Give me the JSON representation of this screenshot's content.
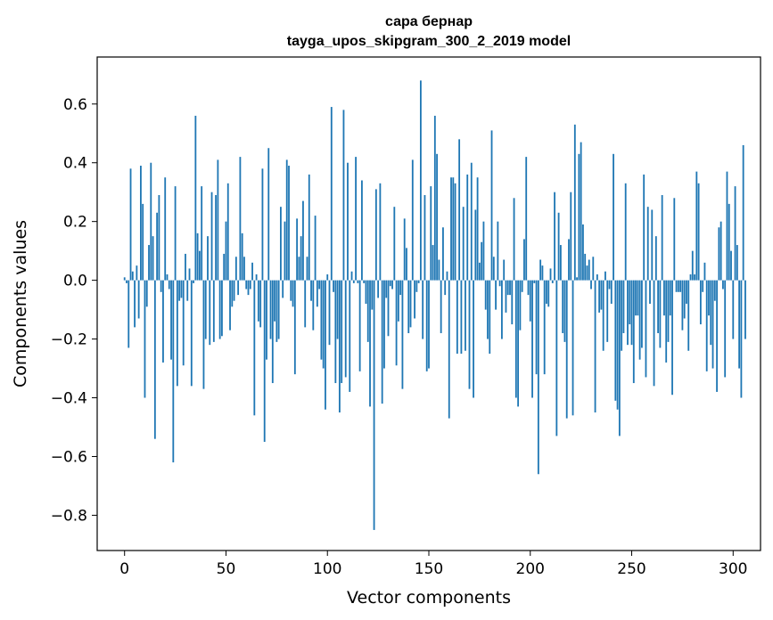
{
  "chart_data": {
    "type": "bar",
    "title": "сара бернар",
    "subtitle": "tayga_upos_skipgram_300_2_2019 model",
    "xlabel": "Vector components",
    "ylabel": "Components values",
    "xlim": [
      -13.5,
      313.5
    ],
    "ylim": [
      -0.92,
      0.76
    ],
    "xticks": [
      0,
      50,
      100,
      150,
      200,
      250,
      300
    ],
    "yticks": [
      -0.8,
      -0.6,
      -0.4,
      -0.2,
      0.0,
      0.2,
      0.4,
      0.6
    ],
    "ytick_labels": [
      "−0.8",
      "−0.6",
      "−0.4",
      "−0.2",
      "0.0",
      "0.2",
      "0.4",
      "0.6"
    ],
    "bar_color": "#1f77b4",
    "values": [
      0.01,
      -0.01,
      -0.23,
      0.38,
      0.03,
      -0.16,
      0.05,
      -0.13,
      0.39,
      0.26,
      -0.4,
      -0.09,
      0.12,
      0.4,
      0.15,
      -0.54,
      0.23,
      0.29,
      -0.04,
      -0.28,
      0.35,
      0.02,
      -0.03,
      -0.27,
      -0.62,
      0.32,
      -0.36,
      -0.07,
      -0.06,
      -0.29,
      0.09,
      -0.07,
      0.04,
      -0.36,
      -0.01,
      0.56,
      0.16,
      0.1,
      0.32,
      -0.37,
      -0.2,
      0.15,
      -0.22,
      0.3,
      -0.21,
      0.29,
      0.41,
      -0.2,
      -0.19,
      0.09,
      0.2,
      0.33,
      -0.17,
      -0.09,
      -0.07,
      0.08,
      -0.05,
      0.42,
      0.16,
      0.08,
      -0.03,
      -0.05,
      -0.03,
      0.06,
      -0.46,
      0.02,
      -0.14,
      -0.16,
      0.38,
      -0.55,
      -0.27,
      0.45,
      -0.2,
      -0.35,
      -0.14,
      -0.21,
      -0.2,
      0.25,
      -0.06,
      0.2,
      0.41,
      0.39,
      -0.07,
      -0.09,
      -0.32,
      0.21,
      0.08,
      0.15,
      0.27,
      -0.16,
      0.08,
      0.36,
      -0.07,
      -0.17,
      0.22,
      -0.09,
      -0.03,
      -0.27,
      -0.3,
      -0.44,
      0.02,
      -0.22,
      0.59,
      -0.04,
      -0.35,
      -0.2,
      -0.45,
      -0.35,
      0.58,
      -0.33,
      0.4,
      -0.38,
      0.03,
      -0.01,
      0.42,
      -0.01,
      -0.31,
      0.34,
      -0.01,
      -0.08,
      -0.21,
      -0.43,
      -0.1,
      -0.85,
      0.31,
      -0.06,
      0.33,
      -0.42,
      -0.3,
      -0.06,
      -0.19,
      -0.02,
      -0.03,
      0.25,
      -0.29,
      -0.14,
      -0.05,
      -0.37,
      0.21,
      0.11,
      -0.18,
      -0.16,
      0.41,
      -0.13,
      -0.04,
      -0.01,
      0.68,
      -0.2,
      0.29,
      -0.31,
      -0.3,
      0.32,
      0.12,
      0.56,
      0.43,
      0.07,
      -0.18,
      0.18,
      -0.05,
      0.03,
      -0.47,
      0.35,
      0.35,
      0.33,
      -0.25,
      0.48,
      -0.25,
      0.25,
      -0.24,
      0.36,
      -0.37,
      0.4,
      -0.4,
      0.24,
      0.35,
      0.06,
      0.13,
      0.2,
      -0.1,
      -0.2,
      -0.25,
      0.51,
      0.08,
      -0.1,
      0.2,
      -0.02,
      -0.2,
      0.07,
      -0.11,
      -0.05,
      -0.05,
      -0.15,
      0.28,
      -0.4,
      -0.43,
      -0.17,
      -0.04,
      0.14,
      0.42,
      -0.05,
      -0.14,
      -0.4,
      -0.01,
      -0.32,
      -0.66,
      0.07,
      0.05,
      -0.32,
      -0.08,
      -0.09,
      0.04,
      -0.01,
      0.3,
      -0.53,
      0.23,
      0.12,
      -0.18,
      -0.21,
      -0.47,
      0.14,
      0.3,
      -0.46,
      0.53,
      0.01,
      0.43,
      0.47,
      0.19,
      0.09,
      0.05,
      0.07,
      -0.03,
      0.08,
      -0.45,
      0.02,
      -0.11,
      -0.1,
      -0.24,
      0.03,
      -0.21,
      -0.03,
      -0.08,
      0.43,
      -0.41,
      -0.44,
      -0.53,
      -0.24,
      -0.18,
      0.33,
      -0.22,
      -0.15,
      -0.22,
      -0.35,
      -0.12,
      -0.12,
      -0.27,
      -0.23,
      0.36,
      -0.33,
      0.25,
      -0.08,
      0.24,
      -0.36,
      0.15,
      -0.18,
      -0.23,
      0.29,
      -0.12,
      -0.28,
      -0.21,
      -0.12,
      -0.39,
      0.28,
      -0.04,
      -0.04,
      -0.04,
      -0.17,
      -0.13,
      -0.08,
      -0.24,
      0.02,
      0.1,
      0.02,
      0.37,
      0.33,
      -0.15,
      -0.04,
      0.06,
      -0.31,
      -0.12,
      -0.22,
      -0.3,
      -0.07,
      -0.38,
      0.18,
      0.2,
      -0.03,
      -0.33,
      0.37,
      0.26,
      0.1,
      -0.2,
      0.32,
      0.12,
      -0.3,
      -0.4,
      0.46,
      -0.2
    ]
  }
}
